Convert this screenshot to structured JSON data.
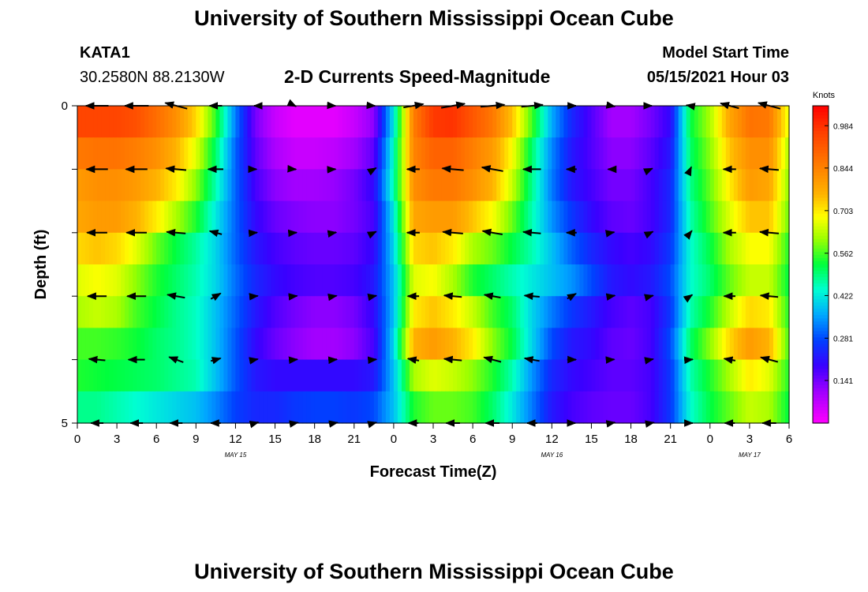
{
  "header": {
    "title_top": "University of Southern Mississippi Ocean Cube",
    "title_bottom": "University of Southern Mississippi Ocean Cube",
    "station_id": "KATA1",
    "station_coords": "30.2580N  88.2130W",
    "model_start_label": "Model Start Time",
    "model_start_value": "05/15/2021 Hour 03"
  },
  "chart_data": {
    "type": "heatmap",
    "title": "2-D Currents Speed-Magnitude",
    "xlabel": "Forecast Time(Z)",
    "ylabel": "Depth (ft)",
    "x_ticks": [
      "0",
      "3",
      "6",
      "9",
      "12",
      "15",
      "18",
      "21",
      "0",
      "3",
      "6",
      "9",
      "12",
      "15",
      "18",
      "21",
      "0",
      "3",
      "6"
    ],
    "date_labels": [
      {
        "text": "MAY 15",
        "at_hour": 12
      },
      {
        "text": "MAY 16",
        "at_hour": 36
      },
      {
        "text": "MAY 17",
        "at_hour": 51
      }
    ],
    "x_range_hours": [
      0,
      54
    ],
    "y_range_ft": [
      0,
      5
    ],
    "y_tick_labels": [
      {
        "depth": 0,
        "label": "0"
      },
      {
        "depth": 1,
        "label": ""
      },
      {
        "depth": 2,
        "label": ""
      },
      {
        "depth": 3,
        "label": ""
      },
      {
        "depth": 4,
        "label": ""
      },
      {
        "depth": 5,
        "label": "5"
      }
    ],
    "colorbar": {
      "units": "Knots",
      "range": [
        0,
        1.05
      ],
      "ticks": [
        "0.984",
        "0.844",
        "0.703",
        "0.562",
        "0.422",
        "0.281",
        "0.141"
      ],
      "tick_values": [
        0.984,
        0.844,
        0.703,
        0.562,
        0.422,
        0.281,
        0.141
      ]
    },
    "speed_hours": [
      0,
      1.5,
      3,
      4.5,
      6,
      7.5,
      9,
      10.5,
      12,
      13.5,
      15,
      16.5,
      18,
      19.5,
      21,
      22.5,
      24,
      25.5,
      27,
      28.5,
      30,
      31.5,
      33,
      34.5,
      36,
      37.5,
      39,
      40.5,
      42,
      43.5,
      45,
      46.5,
      48,
      49.5,
      51,
      52.5,
      54
    ],
    "speed_rows": [
      {
        "depth": 0.25,
        "values": [
          0.95,
          0.95,
          0.95,
          0.93,
          0.88,
          0.82,
          0.72,
          0.55,
          0.32,
          0.14,
          0.06,
          0.03,
          0.03,
          0.03,
          0.06,
          0.12,
          0.42,
          0.85,
          0.97,
          0.98,
          0.92,
          0.86,
          0.74,
          0.56,
          0.36,
          0.24,
          0.17,
          0.1,
          0.1,
          0.14,
          0.2,
          0.52,
          0.62,
          0.78,
          0.87,
          0.86,
          0.66
        ]
      },
      {
        "depth": 0.75,
        "values": [
          0.86,
          0.87,
          0.87,
          0.85,
          0.82,
          0.76,
          0.66,
          0.5,
          0.3,
          0.16,
          0.09,
          0.06,
          0.06,
          0.07,
          0.1,
          0.16,
          0.45,
          0.84,
          0.9,
          0.9,
          0.85,
          0.8,
          0.68,
          0.5,
          0.33,
          0.22,
          0.17,
          0.12,
          0.12,
          0.16,
          0.22,
          0.5,
          0.6,
          0.74,
          0.82,
          0.82,
          0.62
        ]
      },
      {
        "depth": 1.25,
        "values": [
          0.8,
          0.82,
          0.82,
          0.8,
          0.76,
          0.7,
          0.6,
          0.46,
          0.3,
          0.18,
          0.12,
          0.1,
          0.1,
          0.11,
          0.14,
          0.2,
          0.46,
          0.82,
          0.86,
          0.86,
          0.82,
          0.76,
          0.64,
          0.48,
          0.32,
          0.22,
          0.18,
          0.14,
          0.14,
          0.18,
          0.24,
          0.48,
          0.58,
          0.7,
          0.8,
          0.78,
          0.6
        ]
      },
      {
        "depth": 1.75,
        "values": [
          0.78,
          0.8,
          0.8,
          0.76,
          0.7,
          0.62,
          0.54,
          0.42,
          0.3,
          0.2,
          0.15,
          0.13,
          0.12,
          0.12,
          0.14,
          0.18,
          0.42,
          0.78,
          0.8,
          0.8,
          0.74,
          0.68,
          0.58,
          0.46,
          0.34,
          0.26,
          0.2,
          0.16,
          0.15,
          0.18,
          0.24,
          0.46,
          0.56,
          0.66,
          0.74,
          0.74,
          0.58
        ]
      },
      {
        "depth": 2.25,
        "values": [
          0.72,
          0.74,
          0.72,
          0.66,
          0.58,
          0.52,
          0.47,
          0.4,
          0.3,
          0.22,
          0.18,
          0.16,
          0.15,
          0.15,
          0.16,
          0.2,
          0.4,
          0.72,
          0.74,
          0.7,
          0.62,
          0.58,
          0.52,
          0.46,
          0.38,
          0.3,
          0.24,
          0.2,
          0.18,
          0.2,
          0.26,
          0.44,
          0.52,
          0.62,
          0.68,
          0.68,
          0.54
        ]
      },
      {
        "depth": 2.75,
        "values": [
          0.66,
          0.68,
          0.66,
          0.6,
          0.54,
          0.5,
          0.46,
          0.4,
          0.31,
          0.24,
          0.2,
          0.18,
          0.17,
          0.17,
          0.18,
          0.22,
          0.38,
          0.66,
          0.68,
          0.62,
          0.54,
          0.5,
          0.46,
          0.42,
          0.38,
          0.34,
          0.28,
          0.22,
          0.2,
          0.22,
          0.28,
          0.44,
          0.5,
          0.58,
          0.64,
          0.64,
          0.52
        ]
      },
      {
        "depth": 3.25,
        "values": [
          0.62,
          0.64,
          0.62,
          0.56,
          0.52,
          0.48,
          0.45,
          0.38,
          0.3,
          0.22,
          0.17,
          0.14,
          0.12,
          0.12,
          0.14,
          0.2,
          0.38,
          0.7,
          0.74,
          0.7,
          0.64,
          0.56,
          0.5,
          0.4,
          0.32,
          0.26,
          0.22,
          0.18,
          0.16,
          0.18,
          0.26,
          0.46,
          0.54,
          0.64,
          0.72,
          0.7,
          0.54
        ]
      },
      {
        "depth": 3.75,
        "values": [
          0.56,
          0.56,
          0.55,
          0.53,
          0.5,
          0.48,
          0.45,
          0.38,
          0.29,
          0.2,
          0.15,
          0.12,
          0.1,
          0.1,
          0.12,
          0.18,
          0.4,
          0.76,
          0.8,
          0.76,
          0.7,
          0.6,
          0.52,
          0.4,
          0.28,
          0.22,
          0.2,
          0.16,
          0.15,
          0.18,
          0.28,
          0.5,
          0.6,
          0.72,
          0.8,
          0.76,
          0.56
        ]
      },
      {
        "depth": 4.25,
        "values": [
          0.54,
          0.53,
          0.52,
          0.51,
          0.5,
          0.48,
          0.46,
          0.38,
          0.29,
          0.22,
          0.2,
          0.2,
          0.2,
          0.2,
          0.2,
          0.22,
          0.38,
          0.62,
          0.66,
          0.64,
          0.6,
          0.54,
          0.46,
          0.34,
          0.24,
          0.2,
          0.18,
          0.16,
          0.16,
          0.18,
          0.26,
          0.46,
          0.54,
          0.62,
          0.7,
          0.66,
          0.54
        ]
      },
      {
        "depth": 4.75,
        "values": [
          0.48,
          0.48,
          0.46,
          0.44,
          0.42,
          0.4,
          0.38,
          0.33,
          0.27,
          0.24,
          0.24,
          0.26,
          0.27,
          0.27,
          0.26,
          0.28,
          0.38,
          0.54,
          0.58,
          0.58,
          0.56,
          0.5,
          0.42,
          0.32,
          0.22,
          0.18,
          0.16,
          0.15,
          0.15,
          0.18,
          0.26,
          0.44,
          0.52,
          0.58,
          0.64,
          0.62,
          0.52
        ]
      }
    ],
    "vector_depths": [
      0,
      1,
      2,
      3,
      4,
      5
    ],
    "vector_hours": [
      1.5,
      4.5,
      7.5,
      10.5,
      13.5,
      16.5,
      19.5,
      22.5,
      25.5,
      28.5,
      31.5,
      34.5,
      37.5,
      40.5,
      43.5,
      46.5,
      49.5,
      52.5
    ],
    "vectors": [
      [
        [
          -90,
          0.9
        ],
        [
          -90,
          0.95
        ],
        [
          -75,
          0.9
        ],
        [
          -90,
          0.5
        ],
        [
          -90,
          0.1
        ],
        [
          115,
          0.1
        ],
        [
          95,
          0.1
        ],
        [
          95,
          0.1
        ],
        [
          80,
          0.8
        ],
        [
          80,
          0.95
        ],
        [
          85,
          0.95
        ],
        [
          85,
          0.85
        ],
        [
          90,
          0.35
        ],
        [
          100,
          0.3
        ],
        [
          90,
          0.1
        ],
        [
          -80,
          0.3
        ],
        [
          -75,
          0.75
        ],
        [
          -75,
          0.9
        ]
      ],
      [
        [
          -90,
          0.85
        ],
        [
          -90,
          0.85
        ],
        [
          -85,
          0.8
        ],
        [
          -90,
          0.6
        ],
        [
          90,
          0.1
        ],
        [
          95,
          0.1
        ],
        [
          85,
          0.1
        ],
        [
          60,
          0.2
        ],
        [
          -90,
          0.5
        ],
        [
          -85,
          0.85
        ],
        [
          -80,
          0.85
        ],
        [
          -90,
          0.7
        ],
        [
          -90,
          0.4
        ],
        [
          -90,
          0.25
        ],
        [
          65,
          0.15
        ],
        [
          25,
          0.2
        ],
        [
          -90,
          0.5
        ],
        [
          -85,
          0.75
        ]
      ],
      [
        [
          -90,
          0.8
        ],
        [
          -90,
          0.8
        ],
        [
          -85,
          0.75
        ],
        [
          -75,
          0.5
        ],
        [
          85,
          0.15
        ],
        [
          85,
          0.15
        ],
        [
          80,
          0.15
        ],
        [
          65,
          0.2
        ],
        [
          -90,
          0.5
        ],
        [
          -85,
          0.8
        ],
        [
          -80,
          0.8
        ],
        [
          -85,
          0.7
        ],
        [
          -90,
          0.4
        ],
        [
          80,
          0.25
        ],
        [
          65,
          0.2
        ],
        [
          40,
          0.2
        ],
        [
          -90,
          0.5
        ],
        [
          -85,
          0.75
        ]
      ],
      [
        [
          -90,
          0.75
        ],
        [
          -90,
          0.75
        ],
        [
          -80,
          0.7
        ],
        [
          60,
          0.45
        ],
        [
          85,
          0.2
        ],
        [
          85,
          0.18
        ],
        [
          80,
          0.18
        ],
        [
          80,
          0.2
        ],
        [
          -90,
          0.45
        ],
        [
          -85,
          0.7
        ],
        [
          -80,
          0.65
        ],
        [
          -85,
          0.6
        ],
        [
          60,
          0.4
        ],
        [
          80,
          0.3
        ],
        [
          75,
          0.2
        ],
        [
          55,
          0.2
        ],
        [
          -90,
          0.45
        ],
        [
          -85,
          0.7
        ]
      ],
      [
        [
          -85,
          0.65
        ],
        [
          -90,
          0.65
        ],
        [
          -70,
          0.6
        ],
        [
          75,
          0.4
        ],
        [
          80,
          0.2
        ],
        [
          85,
          0.2
        ],
        [
          85,
          0.2
        ],
        [
          85,
          0.2
        ],
        [
          -80,
          0.45
        ],
        [
          -85,
          0.7
        ],
        [
          -75,
          0.7
        ],
        [
          -80,
          0.6
        ],
        [
          90,
          0.35
        ],
        [
          85,
          0.25
        ],
        [
          80,
          0.2
        ],
        [
          85,
          0.2
        ],
        [
          -80,
          0.45
        ],
        [
          -75,
          0.7
        ]
      ],
      [
        [
          -90,
          0.5
        ],
        [
          -90,
          0.5
        ],
        [
          -90,
          0.5
        ],
        [
          -90,
          0.4
        ],
        [
          75,
          0.25
        ],
        [
          80,
          0.25
        ],
        [
          80,
          0.25
        ],
        [
          75,
          0.2
        ],
        [
          -90,
          0.4
        ],
        [
          -90,
          0.55
        ],
        [
          -90,
          0.55
        ],
        [
          -90,
          0.4
        ],
        [
          90,
          0.3
        ],
        [
          80,
          0.3
        ],
        [
          80,
          0.25
        ],
        [
          90,
          0.2
        ],
        [
          -90,
          0.4
        ],
        [
          -90,
          0.55
        ]
      ]
    ]
  }
}
